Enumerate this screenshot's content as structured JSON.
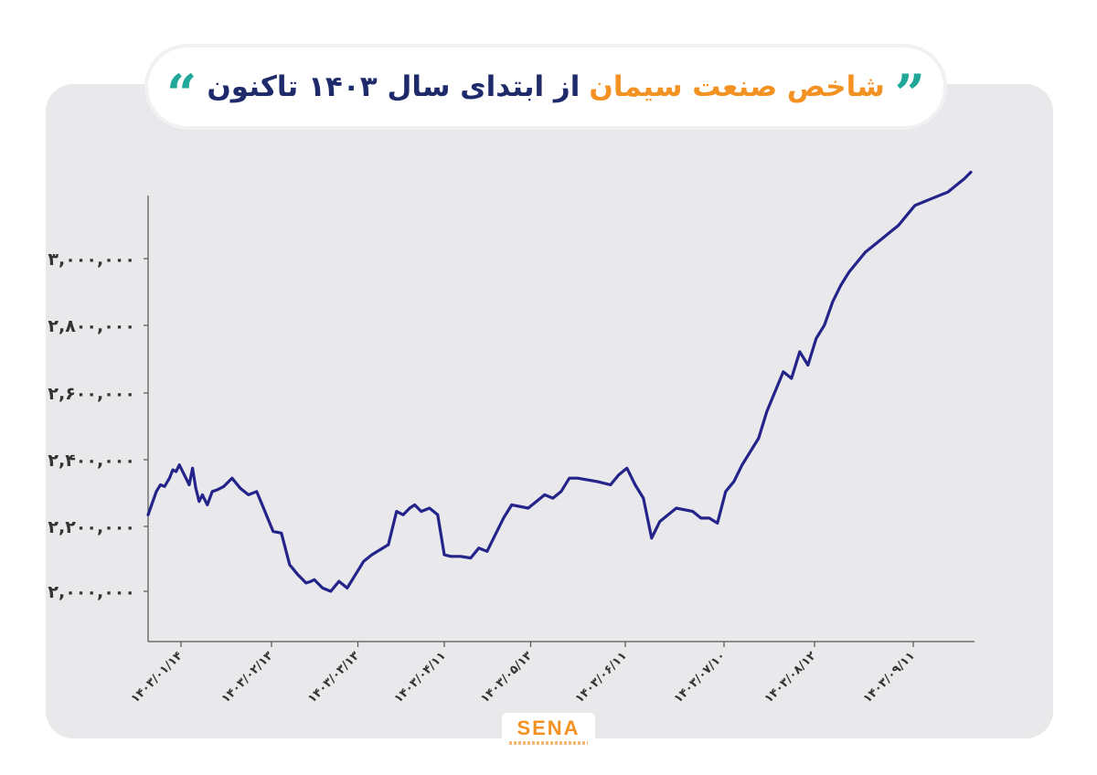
{
  "header": {
    "title_orange": "شاخص صنعت سیمان",
    "title_navy": "از ابتدای سال ۱۴۰۳ تاکنون",
    "quote_open": "“",
    "quote_close": "”"
  },
  "logo": {
    "text": "SENA"
  },
  "colors": {
    "line": "#23238a",
    "accent": "#f39222",
    "navy": "#1f2a6b",
    "quote": "#22a89a",
    "panel": "#e9e8eb"
  },
  "chart_data": {
    "type": "line",
    "title": "شاخص صنعت سیمان از ابتدای سال ۱۴۰۳ تاکنون",
    "xlabel": "",
    "ylabel": "",
    "grid": false,
    "legend": "none",
    "ylim": [
      1850000,
      3200000
    ],
    "yticks": [
      2000000,
      2200000,
      2400000,
      2600000,
      2800000,
      3000000
    ],
    "ytick_labels": [
      "۲,۰۰۰,۰۰۰",
      "۲,۲۰۰,۰۰۰",
      "۲,۴۰۰,۰۰۰",
      "۲,۶۰۰,۰۰۰",
      "۲,۸۰۰,۰۰۰",
      "۳,۰۰۰,۰۰۰"
    ],
    "x_range": [
      0,
      1000
    ],
    "xticks": [
      40,
      150,
      255,
      360,
      465,
      580,
      700,
      810,
      930
    ],
    "xtick_labels": [
      "۱۴۰۳/۰۱/۱۴",
      "۱۴۰۳/۰۲/۱۳",
      "۱۴۰۳/۰۳/۱۳",
      "۱۴۰۳/۰۴/۱۱",
      "۱۴۰۳/۰۵/۱۳",
      "۱۴۰۳/۰۶/۱۱",
      "۱۴۰۳/۰۷/۱۰",
      "۱۴۰۳/۰۸/۱۲",
      "۱۴۰۳/۰۹/۱۱"
    ],
    "series": [
      {
        "x": [
          0,
          10,
          15,
          20,
          26,
          30,
          34,
          38,
          44,
          50,
          54,
          58,
          62,
          66,
          72,
          78,
          84,
          92,
          102,
          112,
          122,
          132,
          142,
          152,
          162,
          172,
          182,
          192,
          198,
          202,
          212,
          222,
          232,
          242,
          252,
          262,
          272,
          282,
          292,
          302,
          310,
          318,
          324,
          332,
          342,
          352,
          360,
          368,
          380,
          392,
          402,
          412,
          422,
          432,
          442,
          462,
          482,
          492,
          502,
          512,
          522,
          546,
          562,
          572,
          582,
          592,
          602,
          612,
          622,
          642,
          662,
          672,
          682,
          692,
          702,
          712,
          722,
          732,
          742,
          752,
          762,
          772,
          782,
          792,
          802,
          812,
          822,
          832,
          842,
          847,
          852,
          862,
          872,
          892,
          902,
          912,
          922,
          932,
          942,
          962,
          972,
          982,
          992,
          1000
        ],
        "y": [
          2230000,
          2300000,
          2320000,
          2315000,
          2340000,
          2365000,
          2360000,
          2380000,
          2350000,
          2320000,
          2370000,
          2310000,
          2270000,
          2290000,
          2260000,
          2300000,
          2305000,
          2315000,
          2340000,
          2310000,
          2290000,
          2300000,
          2240000,
          2180000,
          2175000,
          2080000,
          2050000,
          2025000,
          2030000,
          2035000,
          2010000,
          2000000,
          2030000,
          2010000,
          2050000,
          2090000,
          2110000,
          2125000,
          2140000,
          2240000,
          2230000,
          2250000,
          2260000,
          2240000,
          2250000,
          2230000,
          2110000,
          2105000,
          2105000,
          2100000,
          2130000,
          2120000,
          2170000,
          2220000,
          2260000,
          2250000,
          2290000,
          2280000,
          2300000,
          2340000,
          2340000,
          2330000,
          2320000,
          2350000,
          2370000,
          2320000,
          2280000,
          2160000,
          2210000,
          2250000,
          2240000,
          2220000,
          2220000,
          2205000,
          2300000,
          2330000,
          2380000,
          2420000,
          2460000,
          2540000,
          2600000,
          2660000,
          2640000,
          2720000,
          2680000,
          2760000,
          2800000,
          2870000,
          2920000,
          2940000,
          2960000,
          2990000,
          3020000,
          3060000,
          3080000,
          3100000,
          3130000,
          3160000,
          3170000,
          3190000,
          3200000,
          3220000,
          3240000,
          3260000
        ]
      }
    ]
  }
}
